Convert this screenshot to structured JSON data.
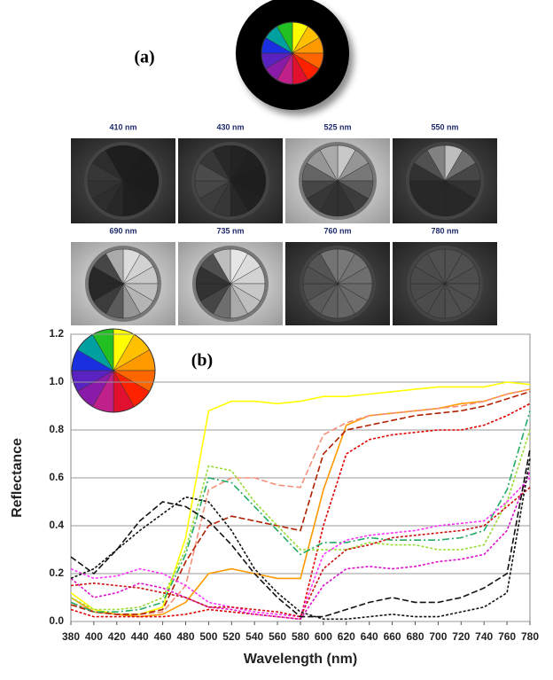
{
  "panel_a": {
    "label": "(a)",
    "band_labels": [
      "410 nm",
      "430 nm",
      "525 nm",
      "550 nm",
      "690 nm",
      "735 nm",
      "760 nm",
      "780 nm"
    ]
  },
  "chart_data": {
    "type": "line",
    "annotation": "(b)",
    "x_label": "Wavelength (nm)",
    "y_label": "Reflectance",
    "x": [
      380,
      400,
      420,
      440,
      460,
      480,
      500,
      520,
      540,
      560,
      580,
      600,
      620,
      640,
      660,
      680,
      700,
      720,
      740,
      760,
      780
    ],
    "xlim": [
      380,
      780
    ],
    "xticks": [
      380,
      400,
      420,
      440,
      460,
      480,
      500,
      520,
      540,
      560,
      580,
      600,
      620,
      640,
      660,
      680,
      700,
      720,
      740,
      760,
      780
    ],
    "ylim": [
      0,
      1.2
    ],
    "yticks": [
      {
        "value": 0,
        "label": "0.0"
      },
      0.2,
      0.4,
      0.6,
      0.8,
      {
        "value": 1,
        "label": "1.0"
      },
      1.2
    ],
    "grid": true,
    "series": [
      {
        "color": "#ffff00",
        "dash": "solid",
        "values": [
          0.12,
          0.05,
          0.03,
          0.03,
          0.06,
          0.35,
          0.88,
          0.92,
          0.92,
          0.91,
          0.92,
          0.94,
          0.94,
          0.95,
          0.96,
          0.97,
          0.98,
          0.98,
          0.98,
          1.0,
          0.99
        ]
      },
      {
        "color": "#ff9900",
        "dash": "solid",
        "values": [
          0.1,
          0.04,
          0.03,
          0.02,
          0.03,
          0.08,
          0.2,
          0.22,
          0.2,
          0.18,
          0.18,
          0.55,
          0.82,
          0.86,
          0.87,
          0.88,
          0.89,
          0.91,
          0.92,
          0.95,
          0.97
        ]
      },
      {
        "color": "#f4907a",
        "dash": "long",
        "values": [
          0.08,
          0.04,
          0.03,
          0.03,
          0.04,
          0.15,
          0.55,
          0.6,
          0.6,
          0.57,
          0.56,
          0.78,
          0.83,
          0.86,
          0.87,
          0.88,
          0.89,
          0.9,
          0.92,
          0.95,
          0.97
        ]
      },
      {
        "color": "#b02000",
        "dash": "long",
        "values": [
          0.07,
          0.04,
          0.03,
          0.03,
          0.05,
          0.25,
          0.4,
          0.44,
          0.42,
          0.4,
          0.38,
          0.7,
          0.8,
          0.82,
          0.84,
          0.86,
          0.87,
          0.88,
          0.9,
          0.93,
          0.96
        ]
      },
      {
        "color": "#e00000",
        "dash": "short",
        "values": [
          0.05,
          0.02,
          0.02,
          0.02,
          0.02,
          0.03,
          0.05,
          0.04,
          0.03,
          0.02,
          0.01,
          0.4,
          0.7,
          0.76,
          0.78,
          0.79,
          0.8,
          0.8,
          0.82,
          0.86,
          0.91
        ]
      },
      {
        "color": "#99dd33",
        "dash": "short",
        "values": [
          0.1,
          0.05,
          0.05,
          0.06,
          0.1,
          0.3,
          0.65,
          0.63,
          0.5,
          0.4,
          0.3,
          0.3,
          0.3,
          0.33,
          0.32,
          0.32,
          0.3,
          0.3,
          0.32,
          0.5,
          0.8
        ]
      },
      {
        "color": "#22aa66",
        "dash": "dashdot",
        "values": [
          0.08,
          0.04,
          0.04,
          0.05,
          0.08,
          0.28,
          0.6,
          0.58,
          0.48,
          0.38,
          0.28,
          0.33,
          0.33,
          0.35,
          0.34,
          0.34,
          0.34,
          0.35,
          0.38,
          0.55,
          0.88
        ]
      },
      {
        "color": "#ff33ff",
        "dash": "short",
        "values": [
          0.22,
          0.18,
          0.19,
          0.22,
          0.2,
          0.15,
          0.08,
          0.06,
          0.04,
          0.03,
          0.02,
          0.28,
          0.34,
          0.36,
          0.37,
          0.38,
          0.4,
          0.41,
          0.42,
          0.5,
          0.6
        ]
      },
      {
        "color": "#dd11cc",
        "dash": "short",
        "values": [
          0.18,
          0.1,
          0.12,
          0.16,
          0.14,
          0.1,
          0.06,
          0.05,
          0.03,
          0.02,
          0.01,
          0.15,
          0.22,
          0.23,
          0.22,
          0.23,
          0.25,
          0.26,
          0.28,
          0.38,
          0.63
        ]
      },
      {
        "color": "#cc1111",
        "dash": "short",
        "values": [
          0.15,
          0.16,
          0.15,
          0.14,
          0.12,
          0.1,
          0.06,
          0.06,
          0.05,
          0.04,
          0.02,
          0.22,
          0.3,
          0.32,
          0.35,
          0.36,
          0.37,
          0.38,
          0.4,
          0.48,
          0.56
        ]
      },
      {
        "color": "#111111",
        "dash": "long",
        "values": [
          0.27,
          0.2,
          0.3,
          0.42,
          0.5,
          0.48,
          0.42,
          0.32,
          0.2,
          0.1,
          0.02,
          0.02,
          0.05,
          0.08,
          0.1,
          0.08,
          0.08,
          0.1,
          0.14,
          0.2,
          0.72
        ]
      },
      {
        "color": "#111111",
        "dash": "short",
        "values": [
          0.18,
          0.22,
          0.3,
          0.38,
          0.45,
          0.52,
          0.5,
          0.38,
          0.22,
          0.12,
          0.04,
          0.01,
          0.01,
          0.02,
          0.03,
          0.02,
          0.02,
          0.04,
          0.06,
          0.12,
          0.68
        ]
      }
    ]
  }
}
